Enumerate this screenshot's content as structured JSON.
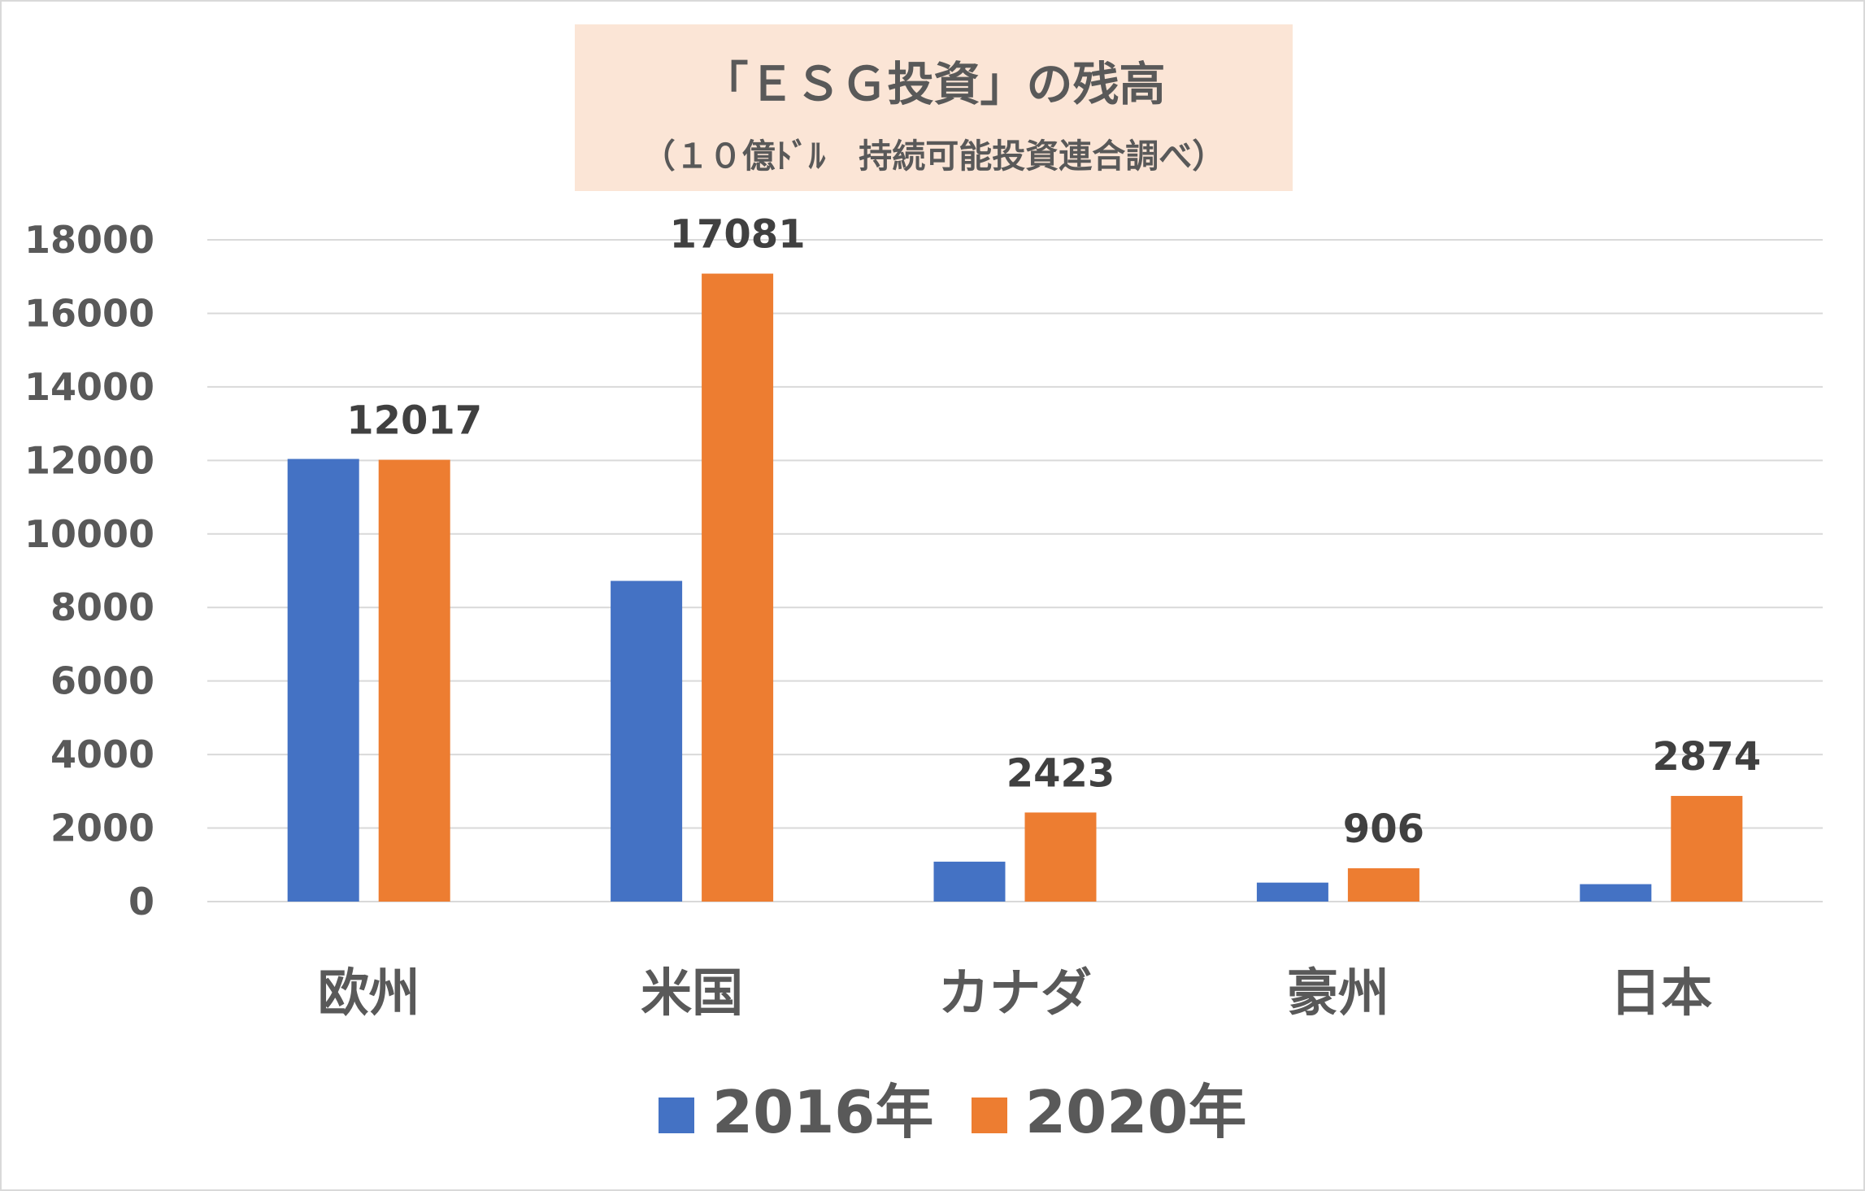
{
  "chart_data": {
    "type": "bar",
    "title": "「ＥＳＧ投資」の残高",
    "subtitle": "（１０億ﾄﾞﾙ　持続可能投資連合調べ）",
    "categories": [
      "欧州",
      "米国",
      "カナダ",
      "豪州",
      "日本"
    ],
    "series": [
      {
        "name": "2016年",
        "color": "#4472c4",
        "values": [
          12040,
          8723,
          1086,
          516,
          474
        ]
      },
      {
        "name": "2020年",
        "color": "#ed7d31",
        "values": [
          12017,
          17081,
          2423,
          906,
          2874
        ],
        "data_labels": [
          "12017",
          "17081",
          "2423",
          "906",
          "2874"
        ]
      }
    ],
    "ylim": [
      0,
      18000
    ],
    "yticks": [
      0,
      2000,
      4000,
      6000,
      8000,
      10000,
      12000,
      14000,
      16000,
      18000
    ],
    "grid": true,
    "legend": "bottom"
  }
}
